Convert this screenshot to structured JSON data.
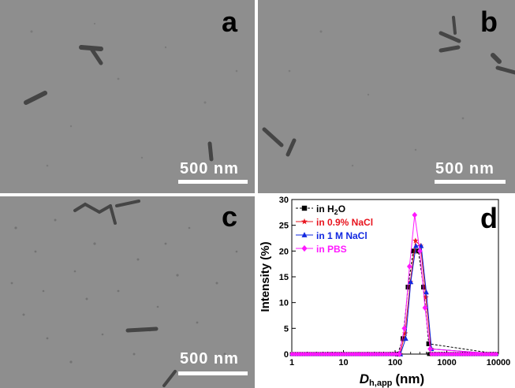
{
  "panels": {
    "a": {
      "label": "a",
      "scale_bar": "500 nm"
    },
    "b": {
      "label": "b",
      "scale_bar": "500 nm"
    },
    "c": {
      "label": "c",
      "scale_bar": "500 nm"
    },
    "d": {
      "label": "d"
    }
  },
  "colors": {
    "tem_background": "#8e8e8e",
    "h2o": "#000000",
    "nacl_09": "#e8141e",
    "nacl_1m": "#1228e0",
    "pbs": "#ff18ff"
  },
  "chart_data": {
    "type": "line",
    "xscale": "log",
    "xlim": [
      1,
      10000
    ],
    "ylim": [
      0,
      30
    ],
    "xticks": [
      "1",
      "10",
      "100",
      "1000",
      "10000"
    ],
    "yticks": [
      "0",
      "5",
      "10",
      "15",
      "20",
      "25",
      "30"
    ],
    "xlabel_main": "D",
    "xlabel_sub": "h,app",
    "xlabel_unit": "(nm)",
    "ylabel": "Intensity (%)",
    "legend_position": "top-left",
    "series": [
      {
        "name_main": "in H",
        "name_sub": "2",
        "name_tail": "O",
        "marker": "square",
        "dashed": true,
        "x": [
          1,
          112,
          142,
          178,
          224,
          282,
          355,
          447,
          10000
        ],
        "y": [
          0,
          0,
          3,
          13,
          20,
          20,
          13,
          2,
          0
        ]
      },
      {
        "name_main": "in 0.9% NaCl",
        "name_sub": "",
        "name_tail": "",
        "marker": "star",
        "dashed": false,
        "x": [
          1,
          124,
          156,
          197,
          248,
          312,
          393,
          495,
          10000
        ],
        "y": [
          0,
          0,
          4,
          14,
          22,
          21,
          11,
          1,
          0
        ]
      },
      {
        "name_main": "in 1 M NaCl",
        "name_sub": "",
        "name_tail": "",
        "marker": "triangle",
        "dashed": false,
        "x": [
          1,
          127,
          160,
          201,
          253,
          319,
          402,
          506,
          10000
        ],
        "y": [
          0,
          0,
          3,
          14,
          21,
          21,
          12,
          1,
          0
        ]
      },
      {
        "name_main": "in PBS",
        "name_sub": "",
        "name_tail": "",
        "marker": "diamond",
        "dashed": false,
        "x": [
          1,
          120,
          151,
          190,
          239,
          301,
          379,
          477,
          10000
        ],
        "y": [
          0,
          0,
          5,
          17,
          27,
          20,
          9,
          1,
          0
        ]
      }
    ]
  }
}
